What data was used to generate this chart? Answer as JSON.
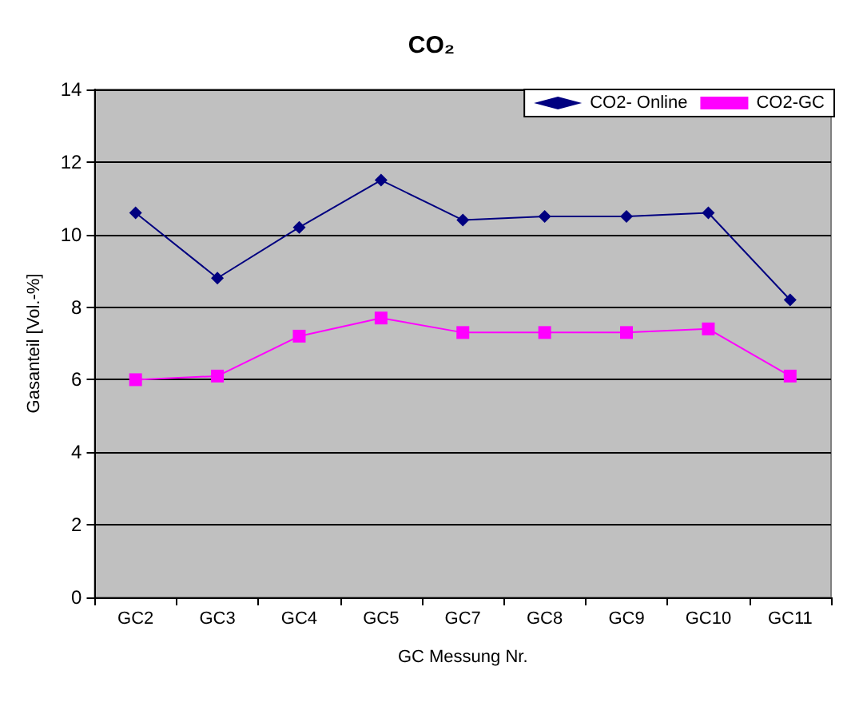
{
  "chart_data": {
    "type": "line",
    "title": "CO₂",
    "xlabel": "GC Messung Nr.",
    "ylabel": "Gasanteil [Vol.-%]",
    "categories": [
      "GC2",
      "GC3",
      "GC4",
      "GC5",
      "GC7",
      "GC8",
      "GC9",
      "GC10",
      "GC11"
    ],
    "series": [
      {
        "name": "CO2- Online",
        "color": "#000080",
        "marker": "diamond",
        "values": [
          10.6,
          8.8,
          10.2,
          11.5,
          10.4,
          10.5,
          10.5,
          10.6,
          8.2
        ]
      },
      {
        "name": "CO2-GC",
        "color": "#ff00ff",
        "marker": "square",
        "values": [
          6.0,
          6.1,
          7.2,
          7.7,
          7.3,
          7.3,
          7.3,
          7.4,
          6.1
        ]
      }
    ],
    "ylim": [
      0,
      14
    ],
    "yticks": [
      0,
      2,
      4,
      6,
      8,
      10,
      12,
      14
    ],
    "grid": "y",
    "legend": "top right",
    "line_style": "solid"
  }
}
